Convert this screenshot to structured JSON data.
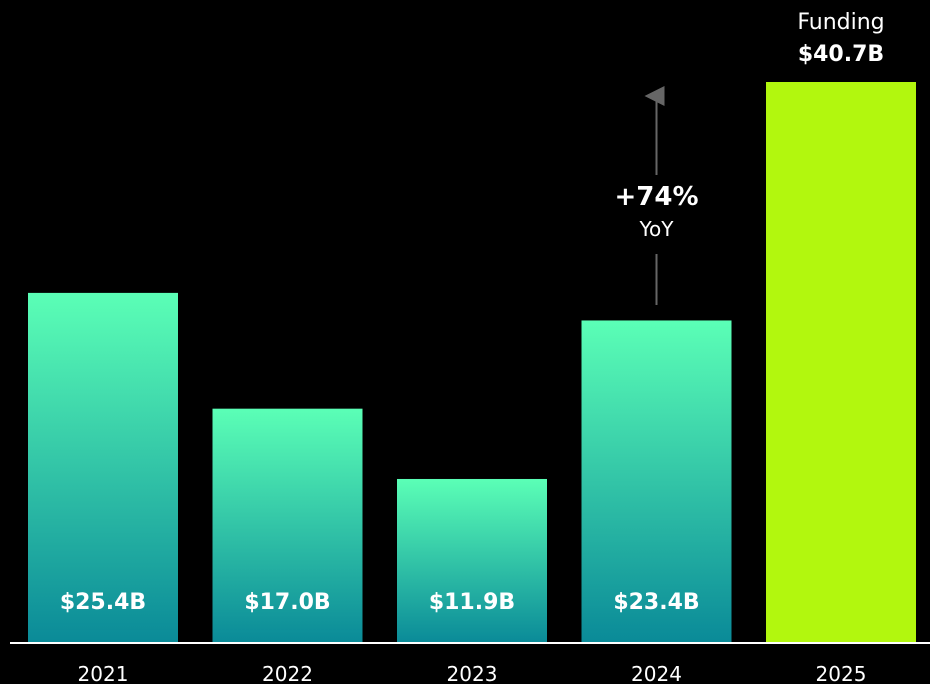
{
  "chart_data": {
    "type": "bar",
    "categories": [
      "2021",
      "2022",
      "2023",
      "2024",
      "2025"
    ],
    "values": [
      25.4,
      17.0,
      11.9,
      23.4,
      40.7
    ],
    "data_labels": [
      "$25.4B",
      "$17.0B",
      "$11.9B",
      "$23.4B",
      "$40.7B"
    ],
    "title": "",
    "xlabel": "",
    "ylabel": "",
    "ylim": [
      0,
      40.7
    ],
    "grid": false,
    "legend": "none",
    "highlight": {
      "category": "2025",
      "title": "Funding",
      "value_label": "$40.7B",
      "color": "#B2F70E"
    },
    "annotation": {
      "from": "2024",
      "text": "+74%",
      "subtext": "YoY"
    },
    "colors": {
      "bar_gradient_top": "#5BFFB6",
      "bar_gradient_bottom": "#0A8A98",
      "highlight": "#B2F70E",
      "arrow": "#666666",
      "axis": "#FFFFFF",
      "background": "#000000"
    }
  }
}
